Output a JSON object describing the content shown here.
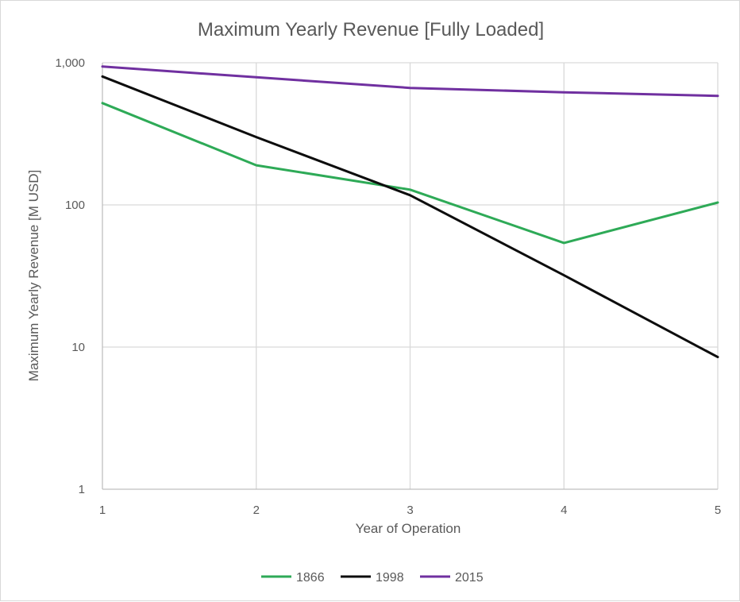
{
  "chart_data": {
    "type": "line",
    "title": "Maximum Yearly Revenue [Fully Loaded]",
    "xlabel": "Year of Operation",
    "ylabel": "Maximum Yearly Revenue [M USD]",
    "y_scale": "log",
    "ylim": [
      1,
      1000
    ],
    "xlim": [
      1,
      5
    ],
    "x": [
      1,
      2,
      3,
      4,
      5
    ],
    "x_tick_labels": [
      "1",
      "2",
      "3",
      "4",
      "5"
    ],
    "y_ticks": [
      1,
      10,
      100,
      1000
    ],
    "y_tick_labels": [
      "1",
      "10",
      "100",
      "1,000"
    ],
    "grid": true,
    "legend_position": "bottom-center",
    "series": [
      {
        "name": "1866",
        "color": "#2eaa57",
        "values": [
          520,
          190,
          128,
          54,
          104
        ]
      },
      {
        "name": "1998",
        "color": "#0d0d0d",
        "values": [
          800,
          300,
          117,
          32,
          8.5
        ]
      },
      {
        "name": "2015",
        "color": "#7030a0",
        "values": [
          940,
          790,
          665,
          620,
          585
        ]
      }
    ]
  }
}
